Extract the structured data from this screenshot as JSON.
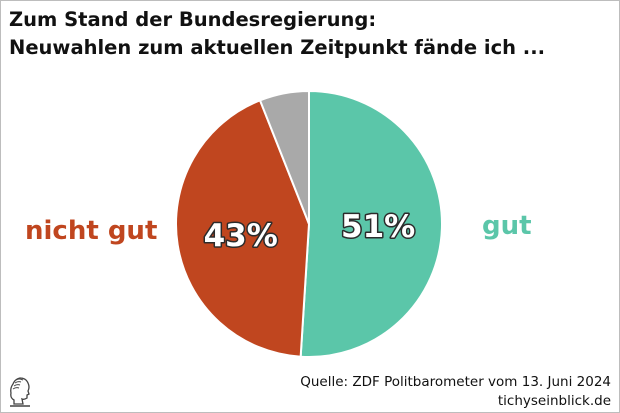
{
  "title": {
    "line1": "Zum Stand der Bundesregierung:",
    "line2": "Neuwahlen zum aktuellen Zeitpunkt fände ich ..."
  },
  "chart_data": {
    "type": "pie",
    "title": "Zum Stand der Bundesregierung: Neuwahlen zum aktuellen Zeitpunkt fände ich ...",
    "slices": [
      {
        "name": "gut",
        "value": 51,
        "label": "51%",
        "color": "#5bc6a9"
      },
      {
        "name": "nicht gut",
        "value": 43,
        "label": "43%",
        "color": "#c0461f"
      },
      {
        "name": "",
        "value": 6,
        "label": "",
        "color": "#a9a9a9"
      }
    ],
    "start_angle_deg": 0,
    "direction": "clockwise"
  },
  "labels": {
    "left": "nicht gut",
    "left_color": "#c0461f",
    "right": "gut",
    "right_color": "#5bc6a9"
  },
  "source": {
    "line1": "Quelle: ZDF Politbarometer vom 13. Juni 2024",
    "line2": "tichyseinblick.de"
  },
  "logo_icon": "classical-bust-icon"
}
